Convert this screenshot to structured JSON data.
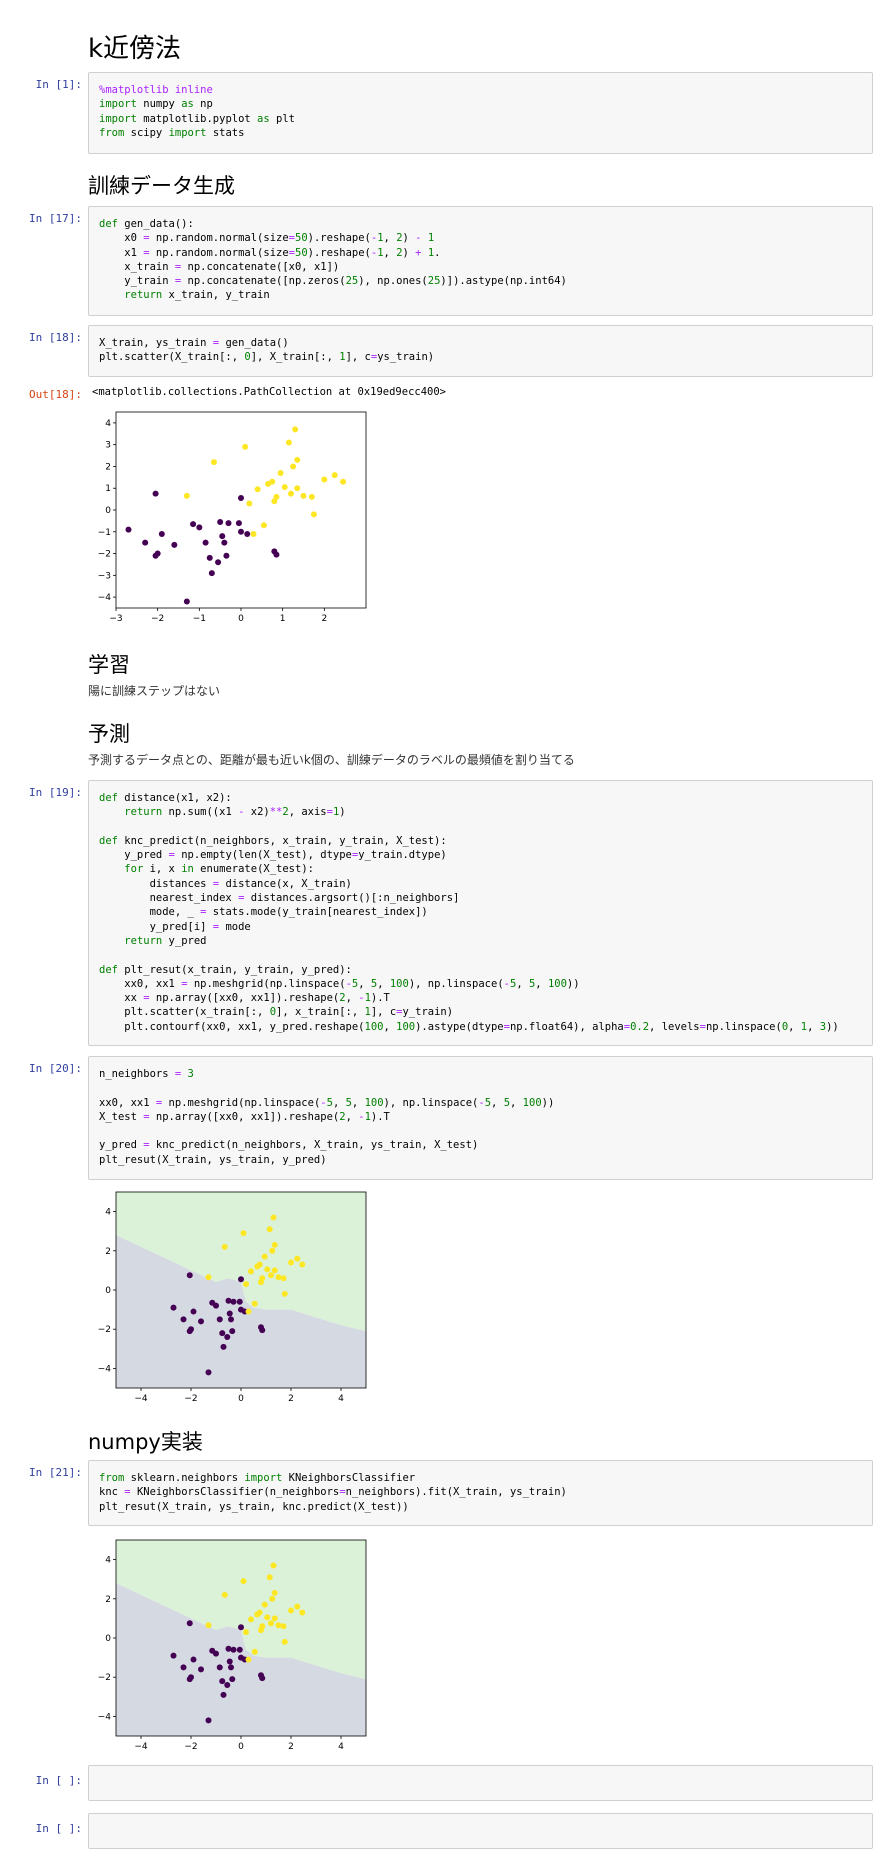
{
  "notebook": {
    "title": "k近傍法",
    "sections": {
      "train_data": "訓練データ生成",
      "learning": "学習",
      "learning_note": "陽に訓練ステップはない",
      "predict": "予測",
      "predict_note": "予測するデータ点との、距離が最も近いk個の、訓練データのラベルの最頻値を割り当てる",
      "numpy": "numpy実装"
    },
    "prompts": {
      "in1": "In [1]:",
      "in17": "In [17]:",
      "in18": "In [18]:",
      "out18": "Out[18]:",
      "in19": "In [19]:",
      "in20": "In [20]:",
      "in21": "In [21]:",
      "empty1": "In [ ]:",
      "empty2": "In [ ]:"
    },
    "out18_text": "<matplotlib.collections.PathCollection at 0x19ed9ecc400>"
  },
  "cells": {
    "c1": [
      "%matplotlib inline",
      "import numpy as np",
      "import matplotlib.pyplot as plt",
      "from scipy import stats"
    ],
    "c17": [
      "def gen_data():",
      "    x0 = np.random.normal(size=50).reshape(-1, 2) - 1",
      "    x1 = np.random.normal(size=50).reshape(-1, 2) + 1.",
      "    x_train = np.concatenate([x0, x1])",
      "    y_train = np.concatenate([np.zeros(25), np.ones(25)]).astype(np.int64)",
      "    return x_train, y_train"
    ],
    "c18": [
      "X_train, ys_train = gen_data()",
      "plt.scatter(X_train[:, 0], X_train[:, 1], c=ys_train)"
    ],
    "c19": [
      "def distance(x1, x2):",
      "    return np.sum((x1 - x2)**2, axis=1)",
      "",
      "def knc_predict(n_neighbors, x_train, y_train, X_test):",
      "    y_pred = np.empty(len(X_test), dtype=y_train.dtype)",
      "    for i, x in enumerate(X_test):",
      "        distances = distance(x, X_train)",
      "        nearest_index = distances.argsort()[:n_neighbors]",
      "        mode, _ = stats.mode(y_train[nearest_index])",
      "        y_pred[i] = mode",
      "    return y_pred",
      "",
      "def plt_resut(x_train, y_train, y_pred):",
      "    xx0, xx1 = np.meshgrid(np.linspace(-5, 5, 100), np.linspace(-5, 5, 100))",
      "    xx = np.array([xx0, xx1]).reshape(2, -1).T",
      "    plt.scatter(x_train[:, 0], x_train[:, 1], c=y_train)",
      "    plt.contourf(xx0, xx1, y_pred.reshape(100, 100).astype(dtype=np.float64), alpha=0.2, levels=np.linspace(0, 1, 3))"
    ],
    "c20": [
      "n_neighbors = 3",
      "",
      "xx0, xx1 = np.meshgrid(np.linspace(-5, 5, 100), np.linspace(-5, 5, 100))",
      "X_test = np.array([xx0, xx1]).reshape(2, -1).T",
      "",
      "y_pred = knc_predict(n_neighbors, X_train, ys_train, X_test)",
      "plt_resut(X_train, ys_train, y_pred)"
    ],
    "c21": [
      "from sklearn.neighbors import KNeighborsClassifier",
      "knc = KNeighborsClassifier(n_neighbors=n_neighbors).fit(X_train, ys_train)",
      "plt_resut(X_train, ys_train, knc.predict(X_test))"
    ]
  },
  "colors": {
    "class0": "#440154",
    "class1": "#fde725",
    "region0": "#d5d9e2",
    "region1": "#dbf2d8",
    "prompt_in": "#303f9f",
    "prompt_out": "#d84315"
  },
  "chart_data": [
    {
      "type": "scatter",
      "xlim": [
        -3,
        3
      ],
      "ylim": [
        -4.5,
        4.5
      ],
      "xticks": [
        -3,
        -2,
        -1,
        0,
        1,
        2
      ],
      "yticks": [
        -4,
        -3,
        -2,
        -1,
        0,
        1,
        2,
        3,
        4
      ],
      "series": [
        {
          "values": [
            [
              -2.7,
              -0.9
            ],
            [
              -2.3,
              -1.5
            ],
            [
              -2.05,
              -2.1
            ],
            [
              -2.0,
              -2.0
            ],
            [
              -1.9,
              -1.1
            ],
            [
              -2.05,
              0.75
            ],
            [
              -1.6,
              -1.6
            ],
            [
              -1.3,
              -4.2
            ],
            [
              -1.15,
              -0.65
            ],
            [
              -1.0,
              -0.8
            ],
            [
              -0.85,
              -1.5
            ],
            [
              -0.75,
              -2.2
            ],
            [
              -0.7,
              -2.9
            ],
            [
              -0.55,
              -2.4
            ],
            [
              -0.5,
              -0.55
            ],
            [
              -0.45,
              -1.2
            ],
            [
              -0.4,
              -1.5
            ],
            [
              -0.35,
              -2.1
            ],
            [
              -0.3,
              -0.6
            ],
            [
              -0.05,
              -0.6
            ],
            [
              0.0,
              0.55
            ],
            [
              0.0,
              -1.0
            ],
            [
              0.15,
              -1.1
            ],
            [
              0.8,
              -1.9
            ],
            [
              0.85,
              -2.05
            ]
          ]
        },
        {
          "values": [
            [
              -1.3,
              0.65
            ],
            [
              -0.65,
              2.2
            ],
            [
              0.1,
              2.9
            ],
            [
              0.2,
              0.3
            ],
            [
              0.3,
              -1.1
            ],
            [
              0.4,
              0.95
            ],
            [
              0.55,
              -0.7
            ],
            [
              0.65,
              1.2
            ],
            [
              0.75,
              1.3
            ],
            [
              0.8,
              0.4
            ],
            [
              0.85,
              0.6
            ],
            [
              0.95,
              1.7
            ],
            [
              1.05,
              1.05
            ],
            [
              1.15,
              3.1
            ],
            [
              1.2,
              0.75
            ],
            [
              1.25,
              2.0
            ],
            [
              1.3,
              3.7
            ],
            [
              1.35,
              2.3
            ],
            [
              1.35,
              1.0
            ],
            [
              1.5,
              0.65
            ],
            [
              1.7,
              0.6
            ],
            [
              1.75,
              -0.2
            ],
            [
              2.0,
              1.4
            ],
            [
              2.25,
              1.6
            ],
            [
              2.45,
              1.3
            ]
          ]
        }
      ]
    },
    {
      "type": "scatter",
      "xlim": [
        -5,
        5
      ],
      "ylim": [
        -5,
        5
      ],
      "xticks": [
        -4,
        -2,
        0,
        2,
        4
      ],
      "yticks": [
        -4,
        -2,
        0,
        2,
        4
      ],
      "series": [
        {
          "values": [
            [
              -2.7,
              -0.9
            ],
            [
              -2.3,
              -1.5
            ],
            [
              -2.05,
              -2.1
            ],
            [
              -2.0,
              -2.0
            ],
            [
              -1.9,
              -1.1
            ],
            [
              -2.05,
              0.75
            ],
            [
              -1.6,
              -1.6
            ],
            [
              -1.3,
              -4.2
            ],
            [
              -1.15,
              -0.65
            ],
            [
              -1.0,
              -0.8
            ],
            [
              -0.85,
              -1.5
            ],
            [
              -0.75,
              -2.2
            ],
            [
              -0.7,
              -2.9
            ],
            [
              -0.55,
              -2.4
            ],
            [
              -0.5,
              -0.55
            ],
            [
              -0.45,
              -1.2
            ],
            [
              -0.4,
              -1.5
            ],
            [
              -0.35,
              -2.1
            ],
            [
              -0.3,
              -0.6
            ],
            [
              -0.05,
              -0.6
            ],
            [
              0.0,
              0.55
            ],
            [
              0.0,
              -1.0
            ],
            [
              0.15,
              -1.1
            ],
            [
              0.8,
              -1.9
            ],
            [
              0.85,
              -2.05
            ]
          ]
        },
        {
          "values": [
            [
              -1.3,
              0.65
            ],
            [
              -0.65,
              2.2
            ],
            [
              0.1,
              2.9
            ],
            [
              0.2,
              0.3
            ],
            [
              0.3,
              -1.1
            ],
            [
              0.4,
              0.95
            ],
            [
              0.55,
              -0.7
            ],
            [
              0.65,
              1.2
            ],
            [
              0.75,
              1.3
            ],
            [
              0.8,
              0.4
            ],
            [
              0.85,
              0.6
            ],
            [
              0.95,
              1.7
            ],
            [
              1.05,
              1.05
            ],
            [
              1.15,
              3.1
            ],
            [
              1.2,
              0.75
            ],
            [
              1.25,
              2.0
            ],
            [
              1.3,
              3.7
            ],
            [
              1.35,
              2.3
            ],
            [
              1.35,
              1.0
            ],
            [
              1.5,
              0.65
            ],
            [
              1.7,
              0.6
            ],
            [
              1.75,
              -0.2
            ],
            [
              2.0,
              1.4
            ],
            [
              2.25,
              1.6
            ],
            [
              2.45,
              1.3
            ]
          ]
        }
      ],
      "boundary": [
        [
          -5,
          2.8
        ],
        [
          -4,
          2.2
        ],
        [
          -3,
          1.6
        ],
        [
          -2,
          1.0
        ],
        [
          -1.5,
          0.7
        ],
        [
          -1,
          0.4
        ],
        [
          -0.5,
          0.6
        ],
        [
          0,
          0.4
        ],
        [
          0.2,
          -0.6
        ],
        [
          0.5,
          -0.9
        ],
        [
          1,
          -1.0
        ],
        [
          2,
          -1.0
        ],
        [
          3,
          -1.4
        ],
        [
          4,
          -1.8
        ],
        [
          5,
          -2.1
        ]
      ]
    },
    {
      "type": "scatter",
      "xlim": [
        -5,
        5
      ],
      "ylim": [
        -5,
        5
      ],
      "xticks": [
        -4,
        -2,
        0,
        2,
        4
      ],
      "yticks": [
        -4,
        -2,
        0,
        2,
        4
      ],
      "series": [
        {
          "values": [
            [
              -2.7,
              -0.9
            ],
            [
              -2.3,
              -1.5
            ],
            [
              -2.05,
              -2.1
            ],
            [
              -2.0,
              -2.0
            ],
            [
              -1.9,
              -1.1
            ],
            [
              -2.05,
              0.75
            ],
            [
              -1.6,
              -1.6
            ],
            [
              -1.3,
              -4.2
            ],
            [
              -1.15,
              -0.65
            ],
            [
              -1.0,
              -0.8
            ],
            [
              -0.85,
              -1.5
            ],
            [
              -0.75,
              -2.2
            ],
            [
              -0.7,
              -2.9
            ],
            [
              -0.55,
              -2.4
            ],
            [
              -0.5,
              -0.55
            ],
            [
              -0.45,
              -1.2
            ],
            [
              -0.4,
              -1.5
            ],
            [
              -0.35,
              -2.1
            ],
            [
              -0.3,
              -0.6
            ],
            [
              -0.05,
              -0.6
            ],
            [
              0.0,
              0.55
            ],
            [
              0.0,
              -1.0
            ],
            [
              0.15,
              -1.1
            ],
            [
              0.8,
              -1.9
            ],
            [
              0.85,
              -2.05
            ]
          ]
        },
        {
          "values": [
            [
              -1.3,
              0.65
            ],
            [
              -0.65,
              2.2
            ],
            [
              0.1,
              2.9
            ],
            [
              0.2,
              0.3
            ],
            [
              0.3,
              -1.1
            ],
            [
              0.4,
              0.95
            ],
            [
              0.55,
              -0.7
            ],
            [
              0.65,
              1.2
            ],
            [
              0.75,
              1.3
            ],
            [
              0.8,
              0.4
            ],
            [
              0.85,
              0.6
            ],
            [
              0.95,
              1.7
            ],
            [
              1.05,
              1.05
            ],
            [
              1.15,
              3.1
            ],
            [
              1.2,
              0.75
            ],
            [
              1.25,
              2.0
            ],
            [
              1.3,
              3.7
            ],
            [
              1.35,
              2.3
            ],
            [
              1.35,
              1.0
            ],
            [
              1.5,
              0.65
            ],
            [
              1.7,
              0.6
            ],
            [
              1.75,
              -0.2
            ],
            [
              2.0,
              1.4
            ],
            [
              2.25,
              1.6
            ],
            [
              2.45,
              1.3
            ]
          ]
        }
      ],
      "boundary": [
        [
          -5,
          2.8
        ],
        [
          -4,
          2.2
        ],
        [
          -3,
          1.6
        ],
        [
          -2,
          1.0
        ],
        [
          -1.5,
          0.7
        ],
        [
          -1,
          0.4
        ],
        [
          -0.5,
          0.6
        ],
        [
          0,
          0.4
        ],
        [
          0.2,
          -0.6
        ],
        [
          0.5,
          -0.9
        ],
        [
          1,
          -1.0
        ],
        [
          2,
          -1.0
        ],
        [
          3,
          -1.4
        ],
        [
          4,
          -1.8
        ],
        [
          5,
          -2.1
        ]
      ]
    }
  ]
}
